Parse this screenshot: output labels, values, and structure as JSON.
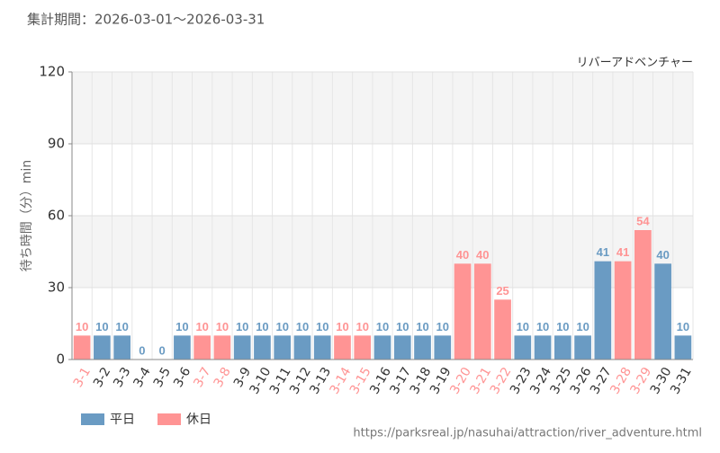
{
  "chart_data": {
    "type": "bar",
    "title": "集計期間：2026-03-01〜2026-03-31",
    "subtitle": "リバーアドベンチャー",
    "y_label": "待ち時間（分）min",
    "source": "https://parksreal.jp/nasuhai/attraction/river_adventure.html",
    "categories": [
      "3-1",
      "3-2",
      "3-3",
      "3-4",
      "3-5",
      "3-6",
      "3-7",
      "3-8",
      "3-9",
      "3-10",
      "3-11",
      "3-12",
      "3-13",
      "3-14",
      "3-15",
      "3-16",
      "3-17",
      "3-18",
      "3-19",
      "3-20",
      "3-21",
      "3-22",
      "3-23",
      "3-24",
      "3-25",
      "3-26",
      "3-27",
      "3-28",
      "3-29",
      "3-30",
      "3-31"
    ],
    "series": [
      {
        "name": "平日",
        "color": "#6a9bc3",
        "values": [
          null,
          10,
          10,
          0,
          0,
          10,
          null,
          null,
          10,
          10,
          10,
          10,
          10,
          null,
          null,
          10,
          10,
          10,
          10,
          null,
          null,
          null,
          10,
          10,
          10,
          10,
          41,
          null,
          null,
          40,
          10
        ]
      },
      {
        "name": "休日",
        "color": "#ff9494",
        "values": [
          10,
          null,
          null,
          null,
          null,
          null,
          10,
          10,
          null,
          null,
          null,
          null,
          null,
          10,
          10,
          null,
          null,
          null,
          null,
          40,
          40,
          25,
          null,
          null,
          null,
          null,
          null,
          41,
          54,
          null,
          null
        ]
      }
    ],
    "ylim": [
      0,
      120
    ],
    "yticks": [
      0,
      30,
      60,
      90,
      120
    ],
    "grid": true
  }
}
